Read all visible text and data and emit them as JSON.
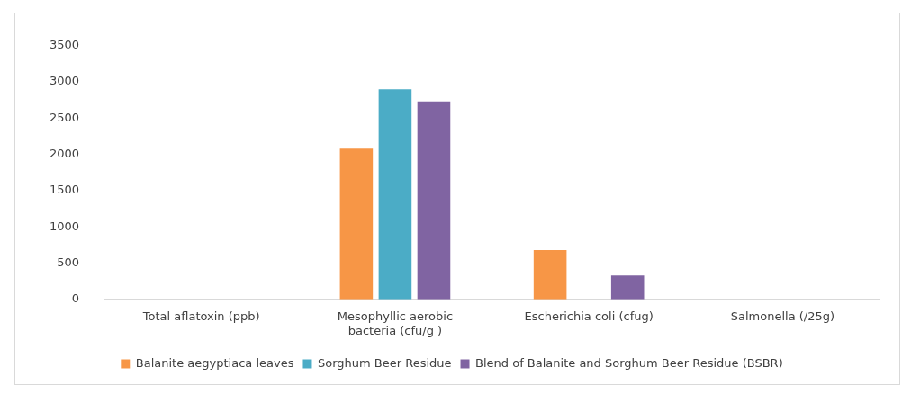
{
  "chart_data": {
    "type": "bar",
    "categories": [
      [
        "Total aflatoxin (ppb)"
      ],
      [
        "Mesophyllic aerobic",
        "bacteria (cfu/g )"
      ],
      [
        "Escherichia coli (cfug)"
      ],
      [
        "Salmonella (/25g)"
      ]
    ],
    "series": [
      {
        "name": "Balanite aegyptiaca leaves",
        "color": "#f79646",
        "values": [
          0,
          2080,
          680,
          0
        ]
      },
      {
        "name": "Sorghum Beer Residue",
        "color": "#4bacc6",
        "values": [
          0,
          2900,
          0,
          0
        ]
      },
      {
        "name": "Blend of Balanite and Sorghum Beer Residue (BSBR)",
        "color": "#8064a2",
        "values": [
          0,
          2730,
          330,
          0
        ]
      }
    ],
    "ylim": [
      0,
      3500
    ],
    "yticks": [
      0,
      500,
      1000,
      1500,
      2000,
      2500,
      3000,
      3500
    ],
    "grid": false,
    "legend": "bottom"
  }
}
